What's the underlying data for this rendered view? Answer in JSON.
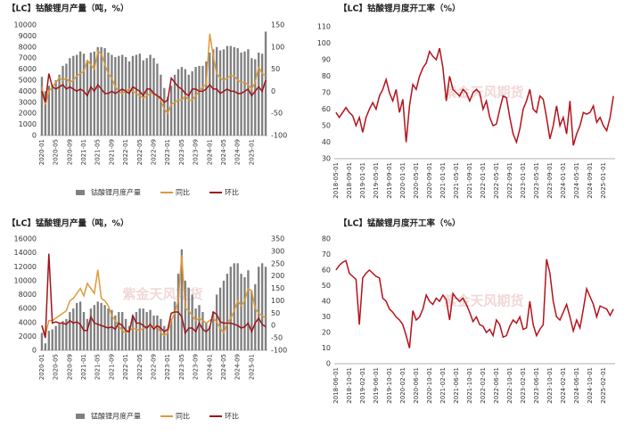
{
  "chart_data": [
    {
      "type": "bar",
      "title": "【LC】钴酸锂月产量（吨，%）",
      "categories": [
        "2020-01",
        null,
        null,
        null,
        "2020-05",
        null,
        null,
        null,
        "2020-09",
        null,
        null,
        null,
        "2021-01",
        null,
        null,
        null,
        "2021-05",
        null,
        null,
        null,
        "2021-09",
        null,
        null,
        null,
        "2022-01",
        null,
        null,
        null,
        "2022-05",
        null,
        null,
        null,
        "2022-09",
        null,
        null,
        null,
        "2023-01",
        null,
        null,
        null,
        "2023-05",
        null,
        null,
        null,
        "2023-09",
        null,
        null,
        null,
        "2024-01",
        null,
        null,
        null,
        "2024-05",
        null,
        null,
        null,
        "2024-09",
        null,
        null,
        null,
        "2025-01",
        null,
        null,
        null,
        null
      ],
      "ylim": [
        0,
        10000
      ],
      "yticks": [
        0,
        1000,
        2000,
        3000,
        4000,
        5000,
        6000,
        7000,
        8000,
        9000,
        10000
      ],
      "y2lim": [
        -100,
        150
      ],
      "y2ticks": [
        -100,
        -50,
        0,
        50,
        100,
        150
      ],
      "grid": false,
      "series": [
        {
          "name": "钴酸锂月度产量",
          "type": "bar",
          "color": "#808080",
          "values": [
            5300,
            4000,
            4500,
            4600,
            5000,
            5500,
            6300,
            6500,
            7000,
            7200,
            7300,
            7600,
            7400,
            6800,
            7500,
            7600,
            8000,
            8000,
            7900,
            7500,
            7300,
            7100,
            7200,
            7300,
            7100,
            6700,
            7200,
            7300,
            7400,
            6800,
            7000,
            7300,
            7000,
            6500,
            5500,
            4300,
            3500,
            4500,
            5500,
            6000,
            6200,
            6000,
            5500,
            5800,
            6200,
            6300,
            6300,
            6700,
            7500,
            7800,
            8000,
            7700,
            7800,
            8100,
            8100,
            8000,
            7900,
            7500,
            7600,
            7800,
            7000,
            6900,
            7500,
            7400,
            9400
          ]
        },
        {
          "name": "同比",
          "type": "line",
          "axis": "y2",
          "color": "#dd9a3c",
          "values": [
            10,
            -30,
            0,
            10,
            20,
            30,
            25,
            30,
            20,
            25,
            35,
            40,
            45,
            70,
            60,
            50,
            90,
            85,
            60,
            40,
            30,
            10,
            0,
            -5,
            0,
            5,
            0,
            -5,
            -10,
            -15,
            -10,
            -5,
            -5,
            -10,
            -20,
            -40,
            -50,
            -30,
            -25,
            -20,
            -20,
            -10,
            -20,
            -20,
            -10,
            0,
            10,
            15,
            130,
            80,
            40,
            30,
            25,
            30,
            35,
            35,
            25,
            20,
            20,
            15,
            5,
            20,
            55,
            40,
            35
          ]
        },
        {
          "name": "环比",
          "type": "line",
          "axis": "y2",
          "color": "#a0141c",
          "values": [
            0,
            -25,
            40,
            10,
            5,
            10,
            15,
            5,
            10,
            5,
            0,
            5,
            0,
            -10,
            10,
            0,
            15,
            5,
            -5,
            -5,
            0,
            -5,
            0,
            5,
            0,
            -5,
            10,
            5,
            0,
            -10,
            5,
            5,
            -5,
            -10,
            -15,
            -25,
            -20,
            30,
            20,
            10,
            5,
            -5,
            -10,
            5,
            5,
            0,
            0,
            5,
            15,
            5,
            5,
            -5,
            0,
            5,
            0,
            0,
            -5,
            -5,
            0,
            5,
            -10,
            0,
            10,
            0,
            25
          ]
        }
      ]
    },
    {
      "type": "line",
      "title": "【LC】钴酸锂月度开工率（%）",
      "watermark": "紫金天风期货",
      "categories": [
        "2018-05-01",
        null,
        null,
        null,
        "2018-09-01",
        null,
        null,
        null,
        "2019-01-01",
        null,
        null,
        null,
        "2019-05-01",
        null,
        null,
        null,
        "2019-09-01",
        null,
        null,
        null,
        "2020-01-01",
        null,
        null,
        null,
        "2020-05-01",
        null,
        null,
        null,
        "2020-09-01",
        null,
        null,
        null,
        "2021-01-01",
        null,
        null,
        null,
        "2021-05-01",
        null,
        null,
        null,
        "2021-09-01",
        null,
        null,
        null,
        "2022-01-01",
        null,
        null,
        null,
        "2022-05-01",
        null,
        null,
        null,
        "2022-09-01",
        null,
        null,
        null,
        "2023-01-01",
        null,
        null,
        null,
        "2023-05-01",
        null,
        null,
        null,
        "2023-09-01",
        null,
        null,
        null,
        "2024-01-01",
        null,
        null,
        null,
        "2024-05-01",
        null,
        null,
        null,
        "2024-09-01",
        null,
        null,
        null,
        "2025-01-01",
        null,
        null,
        null
      ],
      "ylim": [
        30,
        110
      ],
      "yticks": [
        30,
        40,
        50,
        60,
        70,
        80,
        90,
        100,
        110
      ],
      "grid": false,
      "series": [
        {
          "name": "开工率",
          "color": "#b5121b",
          "values": [
            58,
            55,
            58,
            61,
            58,
            56,
            50,
            55,
            46,
            55,
            60,
            64,
            60,
            68,
            72,
            78,
            70,
            65,
            72,
            58,
            66,
            40,
            62,
            75,
            72,
            80,
            85,
            88,
            95,
            92,
            90,
            97,
            85,
            65,
            80,
            72,
            70,
            68,
            72,
            70,
            65,
            70,
            72,
            70,
            60,
            65,
            55,
            50,
            51,
            60,
            68,
            67,
            55,
            45,
            40,
            48,
            60,
            65,
            72,
            60,
            58,
            68,
            66,
            55,
            42,
            50,
            62,
            50,
            55,
            45,
            65,
            38,
            45,
            50,
            58,
            57,
            58,
            62,
            52,
            55,
            50,
            47,
            55,
            68
          ]
        }
      ]
    },
    {
      "type": "bar",
      "title": "【LC】锰酸锂月产量（吨，%）",
      "watermark": "紫金天风期货",
      "categories": [
        "2020-01",
        null,
        null,
        null,
        "2020-05",
        null,
        null,
        null,
        "2020-09",
        null,
        null,
        null,
        "2021-01",
        null,
        null,
        null,
        "2021-05",
        null,
        null,
        null,
        "2021-09",
        null,
        null,
        null,
        "2022-01",
        null,
        null,
        null,
        "2022-05",
        null,
        null,
        null,
        "2022-09",
        null,
        null,
        null,
        "2023-01",
        null,
        null,
        null,
        "2023-05",
        null,
        null,
        null,
        "2023-09",
        null,
        null,
        null,
        "2024-01",
        null,
        null,
        null,
        "2024-05",
        null,
        null,
        null,
        "2024-09",
        null,
        null,
        null,
        "2025-01",
        null,
        null,
        null,
        null
      ],
      "ylim": [
        0,
        16000
      ],
      "yticks": [
        0,
        2000,
        4000,
        6000,
        8000,
        10000,
        12000,
        14000,
        16000
      ],
      "y2lim": [
        -100,
        350
      ],
      "y2ticks": [
        -100,
        -50,
        0,
        50,
        100,
        150,
        200,
        250,
        300,
        350
      ],
      "grid": false,
      "series": [
        {
          "name": "锰酸锂月度产量",
          "type": "bar",
          "color": "#808080",
          "values": [
            2500,
            1000,
            2800,
            3000,
            3500,
            3800,
            4200,
            4500,
            5500,
            6000,
            6800,
            7000,
            5500,
            4500,
            6000,
            6500,
            7000,
            6800,
            6500,
            6000,
            5800,
            5000,
            5500,
            5500,
            4500,
            3500,
            5000,
            5500,
            6000,
            6000,
            5500,
            5800,
            5000,
            5000,
            4500,
            3500,
            3000,
            4500,
            7000,
            11000,
            14500,
            10000,
            9000,
            8000,
            6000,
            6500,
            5500,
            4000,
            3500,
            5500,
            8000,
            9000,
            10000,
            11000,
            12000,
            12500,
            12500,
            11000,
            10500,
            11500,
            8500,
            9500,
            12000,
            12500,
            12000
          ]
        },
        {
          "name": "同比",
          "type": "line",
          "axis": "y2",
          "color": "#dd9a3c",
          "values": [
            0,
            -40,
            20,
            20,
            30,
            40,
            50,
            60,
            100,
            110,
            130,
            150,
            120,
            170,
            150,
            130,
            225,
            110,
            100,
            80,
            40,
            20,
            0,
            -20,
            -30,
            -20,
            -10,
            -15,
            -20,
            -10,
            -10,
            0,
            -10,
            0,
            -30,
            -40,
            -30,
            20,
            50,
            100,
            285,
            70,
            60,
            40,
            20,
            30,
            20,
            10,
            20,
            30,
            15,
            -10,
            -30,
            10,
            30,
            60,
            100,
            80,
            100,
            150,
            140,
            70,
            50,
            40,
            30
          ]
        },
        {
          "name": "环比",
          "type": "line",
          "axis": "y2",
          "color": "#a0141c",
          "values": [
            0,
            -50,
            290,
            10,
            15,
            10,
            10,
            5,
            20,
            10,
            15,
            5,
            -20,
            -20,
            35,
            10,
            5,
            0,
            -5,
            -10,
            -5,
            -15,
            10,
            0,
            -20,
            -25,
            40,
            10,
            10,
            0,
            -10,
            5,
            -15,
            0,
            -10,
            -25,
            -15,
            50,
            55,
            55,
            35,
            -30,
            -10,
            -10,
            -25,
            10,
            -15,
            -25,
            -10,
            55,
            45,
            15,
            10,
            10,
            10,
            5,
            0,
            -10,
            -5,
            10,
            -25,
            10,
            30,
            5,
            -5
          ]
        }
      ]
    },
    {
      "type": "line",
      "title": "【LC】锰酸锂月度开工率（%）",
      "watermark": "紫金天风期货",
      "categories": [
        "2018-06-01",
        null,
        null,
        null,
        "2018-10-01",
        null,
        null,
        null,
        "2019-02-01",
        null,
        null,
        null,
        "2019-06-01",
        null,
        null,
        null,
        "2019-10-01",
        null,
        null,
        null,
        "2020-02-01",
        null,
        null,
        null,
        "2020-06-01",
        null,
        null,
        null,
        "2020-10-01",
        null,
        null,
        null,
        "2021-02-01",
        null,
        null,
        null,
        "2021-06-01",
        null,
        null,
        null,
        "2021-10-01",
        null,
        null,
        null,
        "2022-02-01",
        null,
        null,
        null,
        "2022-06-01",
        null,
        null,
        null,
        "2022-10-01",
        null,
        null,
        null,
        "2023-02-01",
        null,
        null,
        null,
        "2023-06-01",
        null,
        null,
        null,
        "2023-10-01",
        null,
        null,
        null,
        "2024-02-01",
        null,
        null,
        null,
        "2024-06-01",
        null,
        null,
        null,
        "2024-10-01",
        null,
        null,
        null,
        "2025-02-01",
        null,
        null,
        null
      ],
      "ylim": [
        0,
        80
      ],
      "yticks": [
        0,
        10,
        20,
        30,
        40,
        50,
        60,
        70,
        80
      ],
      "grid": false,
      "series": [
        {
          "name": "开工率",
          "color": "#b5121b",
          "values": [
            60,
            63,
            65,
            66,
            58,
            56,
            54,
            25,
            55,
            58,
            60,
            58,
            56,
            55,
            42,
            40,
            35,
            33,
            30,
            28,
            25,
            18,
            10,
            34,
            28,
            30,
            35,
            44,
            40,
            38,
            42,
            40,
            44,
            41,
            28,
            45,
            42,
            40,
            42,
            38,
            33,
            27,
            30,
            25,
            24,
            20,
            22,
            18,
            28,
            25,
            17,
            18,
            24,
            28,
            26,
            30,
            22,
            23,
            40,
            25,
            18,
            22,
            25,
            67,
            58,
            40,
            30,
            28,
            33,
            38,
            30,
            21,
            28,
            23,
            35,
            48,
            43,
            38,
            30,
            37,
            36,
            35,
            31,
            35
          ]
        }
      ]
    }
  ]
}
